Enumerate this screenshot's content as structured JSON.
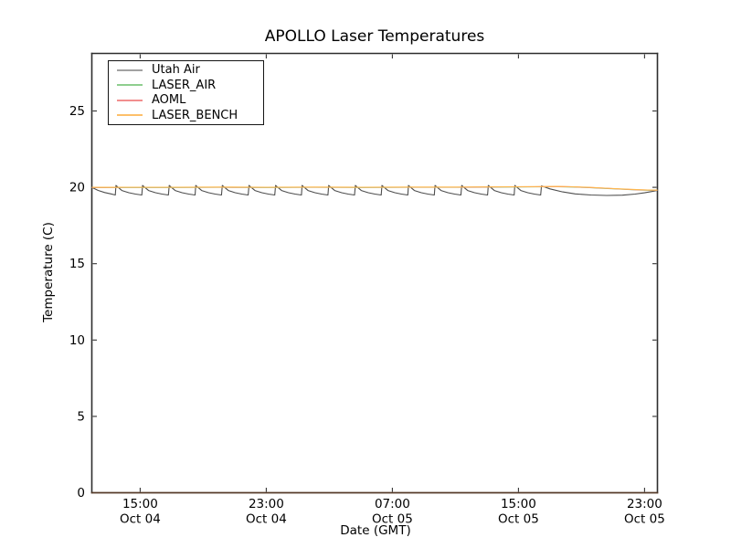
{
  "figure": {
    "title": "APOLLO Laser Temperatures",
    "background_color": "#ffffff",
    "spine_color": "#2e2e2e",
    "bottom_spine_color": "#553a29"
  },
  "axes": {
    "x": {
      "label": "Date (GMT)",
      "ticks": [
        {
          "time": "15:00",
          "date": "Oct 04"
        },
        {
          "time": "23:00",
          "date": "Oct 04"
        },
        {
          "time": "07:00",
          "date": "Oct 05"
        },
        {
          "time": "15:00",
          "date": "Oct 05"
        },
        {
          "time": "23:00",
          "date": "Oct 05"
        }
      ]
    },
    "y": {
      "label": "Temperature (C)",
      "ticks": [
        "0",
        "5",
        "10",
        "15",
        "20",
        "25"
      ]
    }
  },
  "legend": {
    "items": [
      {
        "label": "Utah Air",
        "color": "#a2a2a2"
      },
      {
        "label": "LASER_AIR",
        "color": "#8fce8f"
      },
      {
        "label": "AOML",
        "color": "#f28e8e"
      },
      {
        "label": "LASER_BENCH",
        "color": "#fdc06a"
      }
    ]
  },
  "chart_data": {
    "type": "line",
    "title": "APOLLO Laser Temperatures",
    "xlabel": "Date (GMT)",
    "ylabel": "Temperature (C)",
    "grid": false,
    "legend_position": "upper left",
    "x_unit": "hours since Oct 04 00:00 GMT",
    "x_range": [
      11.93,
      47.82
    ],
    "ylim": [
      0,
      28.77
    ],
    "x_tick_values": [
      15,
      23,
      31,
      39,
      47
    ],
    "x_tick_labels": [
      "15:00 Oct 04",
      "23:00 Oct 04",
      "07:00 Oct 05",
      "15:00 Oct 05",
      "23:00 Oct 05"
    ],
    "y_tick_values": [
      0,
      5,
      10,
      15,
      20,
      25
    ],
    "series": [
      {
        "id": "utah-air",
        "name": "Utah Air",
        "color": "#4d4d4d",
        "points": [
          [
            11.93,
            20.0
          ],
          [
            12.33,
            19.8
          ],
          [
            12.75,
            19.66
          ],
          [
            13.15,
            19.57
          ],
          [
            13.42,
            19.5
          ],
          [
            13.46,
            20.12
          ],
          [
            13.84,
            19.79
          ],
          [
            14.28,
            19.65
          ],
          [
            14.7,
            19.56
          ],
          [
            15.1,
            19.5
          ],
          [
            15.15,
            20.12
          ],
          [
            15.53,
            19.79
          ],
          [
            15.97,
            19.65
          ],
          [
            16.39,
            19.56
          ],
          [
            16.79,
            19.5
          ],
          [
            16.84,
            20.12
          ],
          [
            17.22,
            19.79
          ],
          [
            17.66,
            19.65
          ],
          [
            18.08,
            19.56
          ],
          [
            18.48,
            19.5
          ],
          [
            18.52,
            20.12
          ],
          [
            18.9,
            19.79
          ],
          [
            19.34,
            19.65
          ],
          [
            19.76,
            19.56
          ],
          [
            20.16,
            19.5
          ],
          [
            20.21,
            20.12
          ],
          [
            20.59,
            19.79
          ],
          [
            21.03,
            19.65
          ],
          [
            21.45,
            19.56
          ],
          [
            21.85,
            19.5
          ],
          [
            21.9,
            20.12
          ],
          [
            22.28,
            19.79
          ],
          [
            22.72,
            19.65
          ],
          [
            23.14,
            19.56
          ],
          [
            23.54,
            19.5
          ],
          [
            23.59,
            20.12
          ],
          [
            23.97,
            19.79
          ],
          [
            24.41,
            19.65
          ],
          [
            24.83,
            19.56
          ],
          [
            25.23,
            19.5
          ],
          [
            25.27,
            20.12
          ],
          [
            25.65,
            19.79
          ],
          [
            26.09,
            19.65
          ],
          [
            26.51,
            19.56
          ],
          [
            26.91,
            19.5
          ],
          [
            26.96,
            20.12
          ],
          [
            27.34,
            19.79
          ],
          [
            27.78,
            19.65
          ],
          [
            28.2,
            19.56
          ],
          [
            28.6,
            19.5
          ],
          [
            28.65,
            20.12
          ],
          [
            29.03,
            19.79
          ],
          [
            29.47,
            19.65
          ],
          [
            29.89,
            19.56
          ],
          [
            30.29,
            19.5
          ],
          [
            30.34,
            20.12
          ],
          [
            30.72,
            19.79
          ],
          [
            31.16,
            19.65
          ],
          [
            31.58,
            19.56
          ],
          [
            31.98,
            19.5
          ],
          [
            32.02,
            20.12
          ],
          [
            32.4,
            19.79
          ],
          [
            32.84,
            19.65
          ],
          [
            33.26,
            19.56
          ],
          [
            33.66,
            19.5
          ],
          [
            33.71,
            20.12
          ],
          [
            34.09,
            19.79
          ],
          [
            34.53,
            19.65
          ],
          [
            34.95,
            19.56
          ],
          [
            35.35,
            19.5
          ],
          [
            35.4,
            20.12
          ],
          [
            35.78,
            19.79
          ],
          [
            36.22,
            19.65
          ],
          [
            36.64,
            19.56
          ],
          [
            37.04,
            19.5
          ],
          [
            37.09,
            20.12
          ],
          [
            37.47,
            19.79
          ],
          [
            37.91,
            19.65
          ],
          [
            38.33,
            19.56
          ],
          [
            38.73,
            19.5
          ],
          [
            38.77,
            20.12
          ],
          [
            39.15,
            19.79
          ],
          [
            39.59,
            19.65
          ],
          [
            40.01,
            19.56
          ],
          [
            40.41,
            19.5
          ],
          [
            40.46,
            20.1
          ],
          [
            41.0,
            19.9
          ],
          [
            41.8,
            19.7
          ],
          [
            42.6,
            19.57
          ],
          [
            43.6,
            19.5
          ],
          [
            44.6,
            19.47
          ],
          [
            45.6,
            19.49
          ],
          [
            46.4,
            19.56
          ],
          [
            47.0,
            19.64
          ],
          [
            47.5,
            19.73
          ],
          [
            47.82,
            19.8
          ]
        ]
      },
      {
        "id": "laser-air",
        "name": "LASER_AIR",
        "color": "#7cc47c",
        "points": [
          [
            11.93,
            19.98
          ],
          [
            14,
            19.99
          ],
          [
            17,
            19.99
          ],
          [
            20,
            20.0
          ],
          [
            23,
            19.99
          ],
          [
            26,
            20.0
          ],
          [
            29,
            19.99
          ],
          [
            32,
            20.0
          ],
          [
            35,
            20.0
          ],
          [
            38,
            20.02
          ],
          [
            40,
            20.03
          ],
          [
            41.5,
            20.04
          ],
          [
            42.5,
            20.02
          ],
          [
            43.5,
            19.98
          ],
          [
            44.5,
            19.93
          ],
          [
            45.5,
            19.88
          ],
          [
            46.5,
            19.83
          ],
          [
            47.2,
            19.81
          ],
          [
            47.82,
            19.8
          ]
        ]
      },
      {
        "id": "aoml",
        "name": "AOML",
        "color": "#ef7b7b",
        "points": [
          [
            11.93,
            19.99
          ],
          [
            14,
            20.0
          ],
          [
            17,
            20.0
          ],
          [
            20,
            20.01
          ],
          [
            23,
            20.0
          ],
          [
            26,
            20.01
          ],
          [
            29,
            20.0
          ],
          [
            32,
            20.01
          ],
          [
            35,
            20.01
          ],
          [
            38,
            20.03
          ],
          [
            40,
            20.04
          ],
          [
            41.5,
            20.05
          ],
          [
            42.5,
            20.03
          ],
          [
            43.5,
            19.99
          ],
          [
            44.5,
            19.94
          ],
          [
            45.5,
            19.89
          ],
          [
            46.5,
            19.84
          ],
          [
            47.2,
            19.82
          ],
          [
            47.82,
            19.81
          ]
        ]
      },
      {
        "id": "laser-bench",
        "name": "LASER_BENCH",
        "color": "#fdb94e",
        "points": [
          [
            11.93,
            20.0
          ],
          [
            14,
            20.01
          ],
          [
            17,
            20.01
          ],
          [
            20,
            20.02
          ],
          [
            23,
            20.01
          ],
          [
            26,
            20.02
          ],
          [
            29,
            20.01
          ],
          [
            32,
            20.02
          ],
          [
            35,
            20.02
          ],
          [
            38,
            20.04
          ],
          [
            40,
            20.05
          ],
          [
            41.5,
            20.06
          ],
          [
            42.5,
            20.04
          ],
          [
            43.5,
            20.0
          ],
          [
            44.5,
            19.95
          ],
          [
            45.5,
            19.9
          ],
          [
            46.5,
            19.85
          ],
          [
            47.2,
            19.83
          ],
          [
            47.82,
            19.82
          ]
        ]
      }
    ]
  }
}
